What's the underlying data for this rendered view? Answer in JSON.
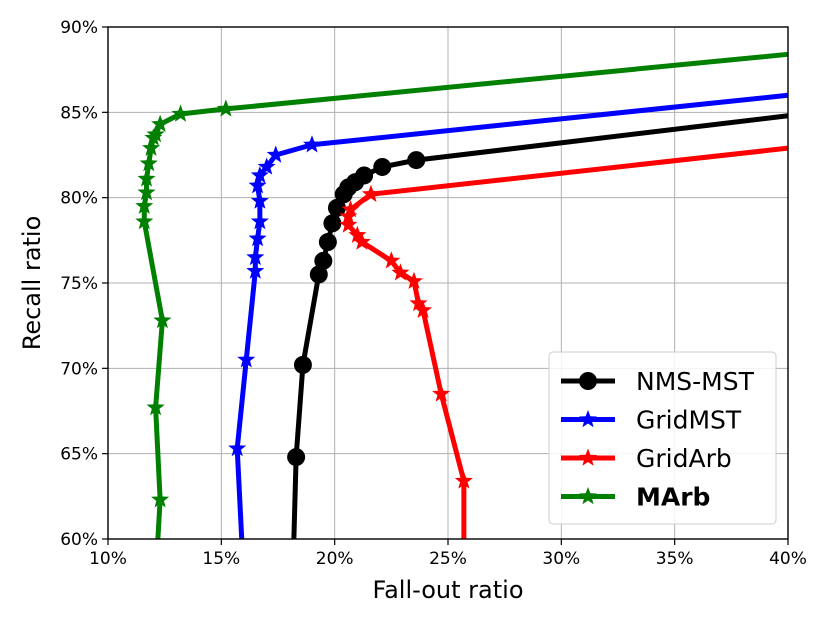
{
  "chart_data": {
    "type": "line",
    "xlabel": "Fall-out ratio",
    "ylabel": "Recall ratio",
    "xlim": [
      10,
      40
    ],
    "ylim": [
      60,
      90
    ],
    "x_ticks": [
      "10%",
      "15%",
      "20%",
      "25%",
      "30%",
      "35%",
      "40%"
    ],
    "y_ticks": [
      "60%",
      "65%",
      "70%",
      "75%",
      "80%",
      "85%",
      "90%"
    ],
    "grid": true,
    "legend_position": "bottom-right",
    "series": [
      {
        "name": "NMS-MST",
        "color": "#000000",
        "marker": "circle",
        "bold": false,
        "x": [
          18.2,
          18.3,
          18.6,
          19.3,
          19.5,
          19.7,
          19.9,
          20.1,
          20.4,
          20.6,
          20.9,
          21.3,
          22.1,
          23.6,
          40
        ],
        "y": [
          60,
          64.8,
          70.2,
          75.5,
          76.3,
          77.4,
          78.5,
          79.4,
          80.2,
          80.6,
          80.9,
          81.3,
          81.8,
          82.2,
          84.8
        ]
      },
      {
        "name": "GridMST",
        "color": "#0000ff",
        "marker": "star",
        "bold": false,
        "x": [
          15.9,
          15.7,
          16.1,
          16.5,
          16.5,
          16.6,
          16.7,
          16.7,
          16.6,
          16.7,
          17.0,
          17.4,
          19.0,
          40
        ],
        "y": [
          60,
          65.3,
          70.5,
          75.7,
          76.5,
          77.6,
          78.6,
          79.8,
          80.7,
          81.3,
          81.8,
          82.5,
          83.1,
          86.0
        ]
      },
      {
        "name": "GridArb",
        "color": "#ff0000",
        "marker": "star",
        "bold": false,
        "x": [
          25.7,
          25.7,
          24.7,
          23.9,
          23.7,
          23.5,
          22.9,
          22.5,
          21.2,
          21.0,
          20.6,
          20.6,
          20.7,
          21.6,
          40
        ],
        "y": [
          60,
          63.4,
          68.5,
          73.4,
          73.8,
          75.1,
          75.6,
          76.3,
          77.4,
          77.8,
          78.4,
          78.9,
          79.3,
          80.2,
          82.9
        ]
      },
      {
        "name": "MArb",
        "color": "#008000",
        "marker": "star",
        "bold": true,
        "x": [
          12.2,
          12.3,
          12.1,
          12.4,
          11.6,
          11.6,
          11.7,
          11.7,
          11.8,
          11.9,
          12.0,
          12.1,
          12.3,
          13.2,
          15.2,
          40
        ],
        "y": [
          60,
          62.3,
          67.7,
          72.8,
          78.6,
          79.5,
          80.3,
          81.1,
          82.0,
          82.9,
          83.5,
          83.7,
          84.3,
          84.9,
          85.2,
          88.4
        ]
      }
    ]
  }
}
